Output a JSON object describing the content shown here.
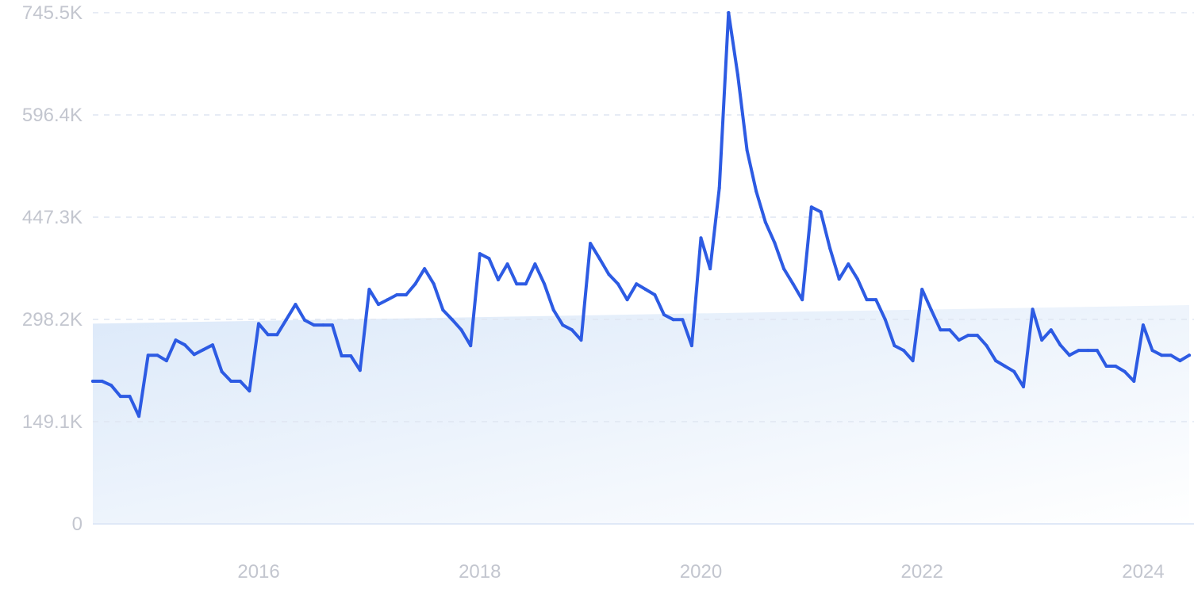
{
  "colors": {
    "line": "#2d5be3",
    "band_top": "#dce9f9",
    "band_bottom": "#ffffff",
    "grid": "#dfe6f2",
    "tick_text": "#c3c6cf"
  },
  "chart_data": {
    "type": "line",
    "title": "",
    "xlabel": "",
    "ylabel": "",
    "grid": true,
    "legend": "none",
    "xlim": [
      "2014-07",
      "2024-06"
    ],
    "ylim": [
      0,
      745500
    ],
    "y_ticks": [
      {
        "value": 0,
        "label": "0"
      },
      {
        "value": 149100,
        "label": "149.1K"
      },
      {
        "value": 298200,
        "label": "298.2K"
      },
      {
        "value": 447300,
        "label": "447.3K"
      },
      {
        "value": 596400,
        "label": "596.4K"
      },
      {
        "value": 745500,
        "label": "745.5K"
      }
    ],
    "x_ticks": [
      {
        "value": "2016-01",
        "label": "2016"
      },
      {
        "value": "2018-01",
        "label": "2018"
      },
      {
        "value": "2020-01",
        "label": "2020"
      },
      {
        "value": "2022-01",
        "label": "2022"
      },
      {
        "value": "2024-01",
        "label": "2024"
      }
    ],
    "trend_band": {
      "start": [
        "2014-07",
        292000
      ],
      "end": [
        "2024-06",
        319000
      ]
    },
    "series": [
      {
        "values": [
          [
            "2014-07",
            208000
          ],
          [
            "2014-08",
            208000
          ],
          [
            "2014-09",
            202000
          ],
          [
            "2014-10",
            186000
          ],
          [
            "2014-11",
            186000
          ],
          [
            "2014-12",
            157000
          ],
          [
            "2015-01",
            246000
          ],
          [
            "2015-02",
            246000
          ],
          [
            "2015-03",
            238000
          ],
          [
            "2015-04",
            268000
          ],
          [
            "2015-05",
            261000
          ],
          [
            "2015-06",
            247000
          ],
          [
            "2015-07",
            254000
          ],
          [
            "2015-08",
            261000
          ],
          [
            "2015-09",
            222000
          ],
          [
            "2015-10",
            208000
          ],
          [
            "2015-11",
            208000
          ],
          [
            "2015-12",
            194000
          ],
          [
            "2016-01",
            292000
          ],
          [
            "2016-02",
            276000
          ],
          [
            "2016-03",
            276000
          ],
          [
            "2016-04",
            298000
          ],
          [
            "2016-05",
            320000
          ],
          [
            "2016-06",
            297000
          ],
          [
            "2016-07",
            290000
          ],
          [
            "2016-08",
            290000
          ],
          [
            "2016-09",
            290000
          ],
          [
            "2016-10",
            245000
          ],
          [
            "2016-11",
            245000
          ],
          [
            "2016-12",
            224000
          ],
          [
            "2017-01",
            342000
          ],
          [
            "2017-02",
            320000
          ],
          [
            "2017-03",
            327000
          ],
          [
            "2017-04",
            334000
          ],
          [
            "2017-05",
            334000
          ],
          [
            "2017-06",
            350000
          ],
          [
            "2017-07",
            372000
          ],
          [
            "2017-08",
            350000
          ],
          [
            "2017-09",
            312000
          ],
          [
            "2017-10",
            298000
          ],
          [
            "2017-11",
            283000
          ],
          [
            "2017-12",
            260000
          ],
          [
            "2018-01",
            394000
          ],
          [
            "2018-02",
            387000
          ],
          [
            "2018-03",
            356000
          ],
          [
            "2018-04",
            379000
          ],
          [
            "2018-05",
            350000
          ],
          [
            "2018-06",
            350000
          ],
          [
            "2018-07",
            379000
          ],
          [
            "2018-08",
            350000
          ],
          [
            "2018-09",
            312000
          ],
          [
            "2018-10",
            290000
          ],
          [
            "2018-11",
            283000
          ],
          [
            "2018-12",
            268000
          ],
          [
            "2019-01",
            409000
          ],
          [
            "2019-02",
            387000
          ],
          [
            "2019-03",
            364000
          ],
          [
            "2019-04",
            350000
          ],
          [
            "2019-05",
            327000
          ],
          [
            "2019-06",
            350000
          ],
          [
            "2019-07",
            342000
          ],
          [
            "2019-08",
            334000
          ],
          [
            "2019-09",
            305000
          ],
          [
            "2019-10",
            298000
          ],
          [
            "2019-11",
            298000
          ],
          [
            "2019-12",
            260000
          ],
          [
            "2020-01",
            417000
          ],
          [
            "2020-02",
            372000
          ],
          [
            "2020-03",
            490000
          ],
          [
            "2020-04",
            745500
          ],
          [
            "2020-05",
            655000
          ],
          [
            "2020-06",
            545000
          ],
          [
            "2020-07",
            485000
          ],
          [
            "2020-08",
            440000
          ],
          [
            "2020-09",
            410000
          ],
          [
            "2020-10",
            372000
          ],
          [
            "2020-11",
            350000
          ],
          [
            "2020-12",
            327000
          ],
          [
            "2021-01",
            462000
          ],
          [
            "2021-02",
            455000
          ],
          [
            "2021-03",
            402000
          ],
          [
            "2021-04",
            357000
          ],
          [
            "2021-05",
            379000
          ],
          [
            "2021-06",
            357000
          ],
          [
            "2021-07",
            327000
          ],
          [
            "2021-08",
            327000
          ],
          [
            "2021-09",
            298000
          ],
          [
            "2021-10",
            260000
          ],
          [
            "2021-11",
            253000
          ],
          [
            "2021-12",
            238000
          ],
          [
            "2022-01",
            342000
          ],
          [
            "2022-02",
            312000
          ],
          [
            "2022-03",
            283000
          ],
          [
            "2022-04",
            283000
          ],
          [
            "2022-05",
            268000
          ],
          [
            "2022-06",
            275000
          ],
          [
            "2022-07",
            275000
          ],
          [
            "2022-08",
            260000
          ],
          [
            "2022-09",
            238000
          ],
          [
            "2022-10",
            230000
          ],
          [
            "2022-11",
            222000
          ],
          [
            "2022-12",
            200000
          ],
          [
            "2023-01",
            313000
          ],
          [
            "2023-02",
            268000
          ],
          [
            "2023-03",
            283000
          ],
          [
            "2023-04",
            261000
          ],
          [
            "2023-05",
            246000
          ],
          [
            "2023-06",
            253000
          ],
          [
            "2023-07",
            253000
          ],
          [
            "2023-08",
            253000
          ],
          [
            "2023-09",
            230000
          ],
          [
            "2023-10",
            230000
          ],
          [
            "2023-11",
            222000
          ],
          [
            "2023-12",
            208000
          ],
          [
            "2024-01",
            290000
          ],
          [
            "2024-02",
            253000
          ],
          [
            "2024-03",
            246000
          ],
          [
            "2024-04",
            246000
          ],
          [
            "2024-05",
            238000
          ],
          [
            "2024-06",
            246000
          ]
        ]
      }
    ]
  }
}
